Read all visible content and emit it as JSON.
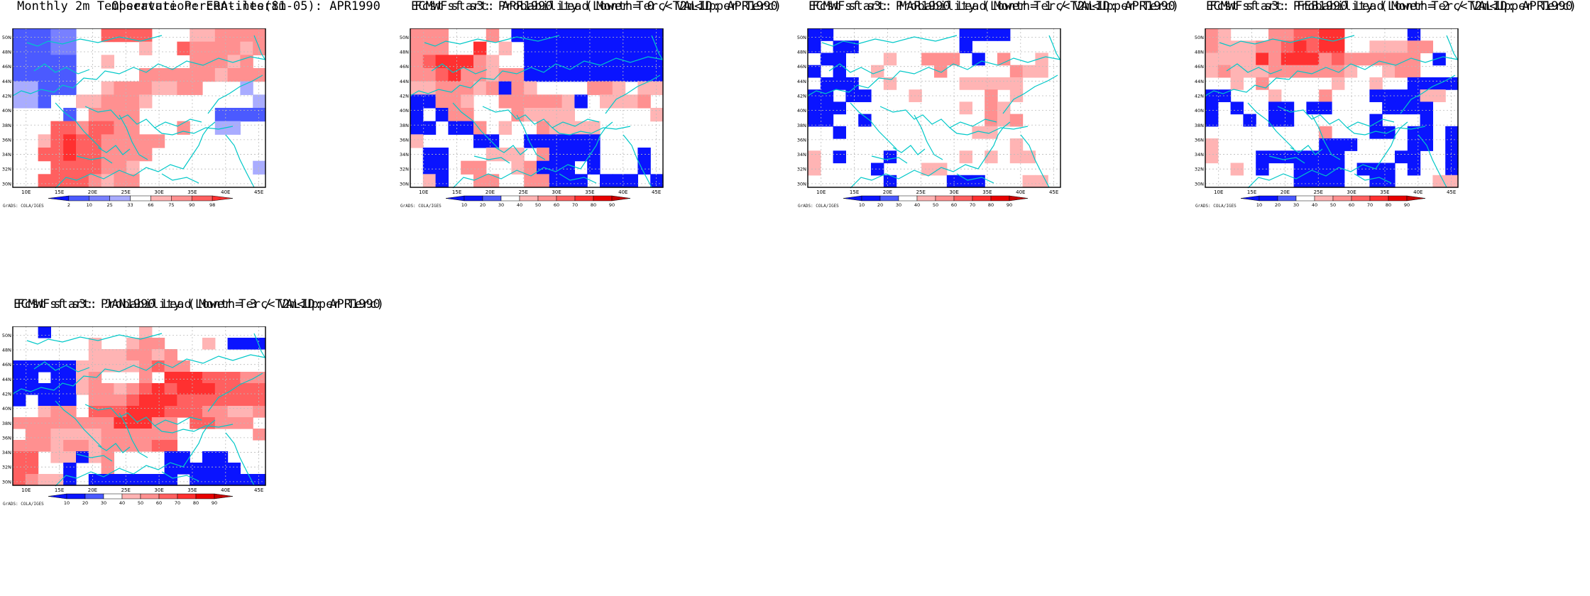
{
  "colors": {
    "blue_dark": "#0a14ff",
    "blue_mid": "#4b5aff",
    "blue_light": "#7880ff",
    "blue_pale": "#a9acff",
    "red_pale": "#ffb4b4",
    "red_light": "#ff9090",
    "red_mid": "#ff6060",
    "red_strong": "#ff3030",
    "red_dark": "#e80000",
    "coast": "#00c8c8"
  },
  "axes": {
    "lon_labels": [
      "10E",
      "15E",
      "20E",
      "25E",
      "30E",
      "35E",
      "40E",
      "45E"
    ],
    "lat_labels": [
      "30N",
      "32N",
      "34N",
      "36N",
      "38N",
      "40N",
      "42N",
      "44N",
      "46N",
      "48N",
      "50N"
    ]
  },
  "credit": "GrADS: COLA/IGES",
  "panels": [
    {
      "title1": "Observation: ERA-interim",
      "title2": "Monthly 2m Temperature Percentiles(81-05): APR1990",
      "colorbar": [
        "2",
        "10",
        "25",
        "33",
        "66",
        "75",
        "90",
        "98"
      ],
      "colorbar_colors": [
        "#0a14ff",
        "#4b5aff",
        "#7880ff",
        "#a9acff",
        "#ffffff",
        "#ffb4b4",
        "#ff9090",
        "#ff6060",
        "#ff3030"
      ]
    },
    {
      "title1": "ECMWFsf s3: Probability (Lower Terc<T2m<Upper Terc)",
      "title2": "Fcst start: APR1990   Lead Month= 0 / VALID: APR1990",
      "colorbar": [
        "10",
        "20",
        "30",
        "40",
        "50",
        "60",
        "70",
        "80",
        "90"
      ],
      "colorbar_colors": [
        "#0a14ff",
        "#0a14ff",
        "#4b5aff",
        "#ffffff",
        "#ffb4b4",
        "#ff9090",
        "#ff6060",
        "#ff3030",
        "#e80000",
        "#c80000"
      ]
    },
    {
      "title1": "ECMWFsf s3: Probability (Lower Terc<T2m<Upper Terc)",
      "title2": "Fcst start: MAR1990   Lead Month= 1 / VALID: APR1990",
      "colorbar": [
        "10",
        "20",
        "30",
        "40",
        "50",
        "60",
        "70",
        "80",
        "90"
      ],
      "colorbar_colors": [
        "#0a14ff",
        "#0a14ff",
        "#4b5aff",
        "#ffffff",
        "#ffb4b4",
        "#ff9090",
        "#ff6060",
        "#ff3030",
        "#e80000",
        "#c80000"
      ]
    },
    {
      "title1": "ECMWFsf s3: Probability (Lower Terc<T2m<Upper Terc)",
      "title2": "Fcst start: FEB1990   Lead Month= 2 / VALID: APR1990",
      "colorbar": [
        "10",
        "20",
        "30",
        "40",
        "50",
        "60",
        "70",
        "80",
        "90"
      ],
      "colorbar_colors": [
        "#0a14ff",
        "#0a14ff",
        "#4b5aff",
        "#ffffff",
        "#ffb4b4",
        "#ff9090",
        "#ff6060",
        "#ff3030",
        "#e80000",
        "#c80000"
      ]
    },
    {
      "title1": "ECMWFsf s3: Probability (Lower Terc<T2m<Upper Terc)",
      "title2": "Fcst start: JAN1990   Lead Month= 3 / VALID: APR1990",
      "colorbar": [
        "10",
        "20",
        "30",
        "40",
        "50",
        "60",
        "70",
        "80",
        "90"
      ],
      "colorbar_colors": [
        "#0a14ff",
        "#0a14ff",
        "#4b5aff",
        "#ffffff",
        "#ffb4b4",
        "#ff9090",
        "#ff6060",
        "#ff3030",
        "#e80000",
        "#c80000"
      ]
    }
  ],
  "grids": [
    [
      "bbbaa..rrrr...ppmmmm",
      "bbbaa.....p..rmmmmpm",
      "bbbbb..p......mmmpm.",
      "bbbbb.....mmmmmmpmmm",
      "ccbbb..pmmmppmm...c.",
      "ccb..ppmmmp........c",
      "....b.mmmm......bbbb",
      "...rrmrrmm...m..cc..",
      "..prsrrmmmmm........",
      "..rrsrrmmmm.........",
      "...rrrrmmp.........c",
      "..rrrrmpmm.........."
    ],
    [
      "mmm...m.DDDDDDDDDDDD",
      "mmm..s.p.DDDDDDDDDDD",
      "mrsssmp..DDDDDDDDDDD",
      "mmrsmmpmmDDDDDDDDDDD",
      "ppmmmpmDmp....mmp.pp",
      "DDmmp..mmmmmpD.pppm.",
      "D.Dmm...mpppp......p",
      "DD.DDm.p..mpppp.....",
      "p....DD..DDDDDD.....",
      ".DD...ppp.mDDDD...D.",
      ".DD.mm..pmDDD.D...D.",
      ".pD..mm..mmDDD.DDD.D"
    ],
    [
      "DD..........DDDD....",
      "D.DD........D.......",
      ".DD...p..mmm.D.m..p.",
      "D.D..p....m.....mpp.",
      ".DDD..p.....ppppp...",
      "DD.DD...p.....m.p...",
      "DDD.........p.mp....",
      "DD..D.........mpm...",
      "..D..........pp.....",
      "................p...",
      "p.D...D.....p.p.pp..",
      "p....D...pp.........",
      "......D....DDD...pp."
    ],
    [
      "mp...mmrrss.....D...",
      "mpppmmrsrss..pppmm..",
      "ppppsmsssmrmmmmmm.D.",
      "pmpppmmmmmmp..pmm...",
      "..p.m.....p..p..DDDD",
      "DD...p...m...DDDDpp.",
      "D.D..DD.DD....DDDD..",
      "D..D.DD......D...D..",
      ".........m...DD.DD.D",
      "p........DDD....DD.D",
      "p...DDDDDDD....DD..D",
      "..p.D..DDDD.DDD.D..D",
      ".......DDDD..DD...pp"
    ],
    [
      "..D.......p.........",
      "......p..pmm...p.DDD",
      "......pppmmpm.......",
      "DDDDDpppppmrmm......",
      "DD.DDpm...m.sssrrrmm",
      "DDDDDpmmpmrsrsssrrrr",
      "D.DDD.mmmrsssrrrrrrr",
      "..pmm.rrrsssrrrmmppm",
      "mmmmmmmmsssmm.rrmmm.",
      ".mmppppmmmmmm......m",
      "mmmpmmpmmmmrr.......",
      "rr.ppDpm....DD.DD...",
      "rr..D..m....DDDDDD..",
      "rmppD.DDDDDDD.DDDDDD"
    ]
  ]
}
